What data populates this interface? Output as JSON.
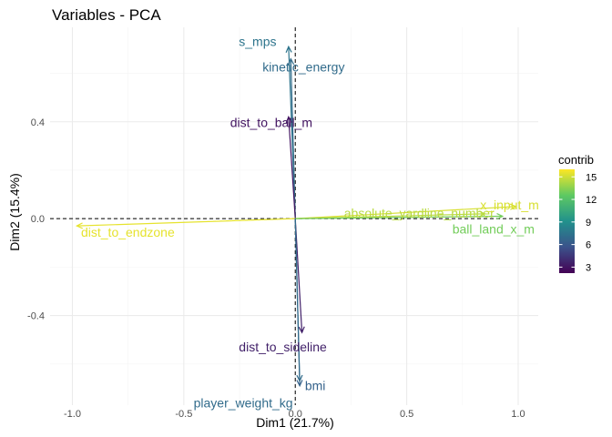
{
  "chart_data": {
    "type": "scatter",
    "title": "Variables - PCA",
    "xlabel": "Dim1 (21.7%)",
    "ylabel": "Dim2 (15.4%)",
    "xlim": [
      -1.1,
      1.09
    ],
    "ylim": [
      -0.77,
      0.79
    ],
    "x_ticks": [
      -1.0,
      -0.5,
      0.0,
      0.5,
      1.0
    ],
    "x_tick_labels": [
      "-1.0",
      "-0.5",
      "0.0",
      "0.5",
      "1.0"
    ],
    "y_ticks": [
      -0.4,
      0.0,
      0.4
    ],
    "y_tick_labels": [
      "-0.4",
      "0.0",
      "0.4"
    ],
    "grid": true,
    "legend": {
      "title": "contrib",
      "placement": "right",
      "min": 2.2,
      "max": 16,
      "ticks": [
        3,
        6,
        9,
        12,
        15
      ],
      "tick_labels": [
        "3",
        "6",
        "9",
        "12",
        "15"
      ],
      "colors": [
        "#440154",
        "#3b528b",
        "#21918c",
        "#5ec962",
        "#fde725"
      ]
    },
    "variables": [
      {
        "name": "s_mps",
        "x": -0.03,
        "y": 0.71,
        "contrib": 7.5
      },
      {
        "name": "kinetic_energy",
        "x": -0.02,
        "y": 0.66,
        "contrib": 7.0
      },
      {
        "name": "dist_to_ball_m",
        "x": -0.03,
        "y": 0.42,
        "contrib": 3.0
      },
      {
        "name": "absolute_yardline_number",
        "x": 0.85,
        "y": 0.02,
        "contrib": 14.5
      },
      {
        "name": "x_input_m",
        "x": 0.99,
        "y": 0.05,
        "contrib": 15.2
      },
      {
        "name": "ball_land_x_m",
        "x": 0.93,
        "y": 0.01,
        "contrib": 13.0
      },
      {
        "name": "dist_to_endzone",
        "x": -0.98,
        "y": -0.03,
        "contrib": 15.5
      },
      {
        "name": "dist_to_sideline",
        "x": 0.03,
        "y": -0.47,
        "contrib": 3.5
      },
      {
        "name": "bmi",
        "x": 0.02,
        "y": -0.69,
        "contrib": 6.5
      },
      {
        "name": "player_weight_kg",
        "x": 0.02,
        "y": -0.67,
        "contrib": 7.0
      }
    ]
  }
}
